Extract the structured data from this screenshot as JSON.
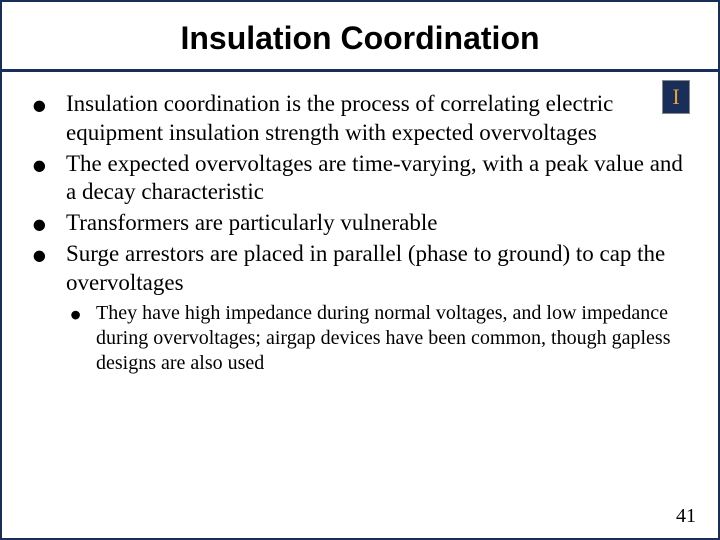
{
  "title": "Insulation Coordination",
  "logo_letter": "I",
  "bullets": {
    "b0": "Insulation coordination is the process of correlating electric equipment insulation strength with expected overvoltages",
    "b1": "The expected overvoltages are time-varying, with a peak value and a decay characteristic",
    "b2": "Transformers are particularly vulnerable",
    "b3": "Surge arrestors are placed in parallel (phase to ground) to cap the overvoltages",
    "sub0": "They have high impedance during normal voltages, and low impedance during overvoltages; airgap devices have been common, though gapless designs are also used"
  },
  "page_number": "41",
  "colors": {
    "border": "#1a2e5a",
    "logo_bg": "#1a2e5a",
    "logo_fg": "#e8a23a",
    "text": "#000000",
    "background": "#ffffff"
  },
  "fonts": {
    "title_family": "Arial",
    "title_size_pt": 24,
    "body_family": "Times New Roman",
    "body_size_pt": 17,
    "sub_size_pt": 15
  }
}
